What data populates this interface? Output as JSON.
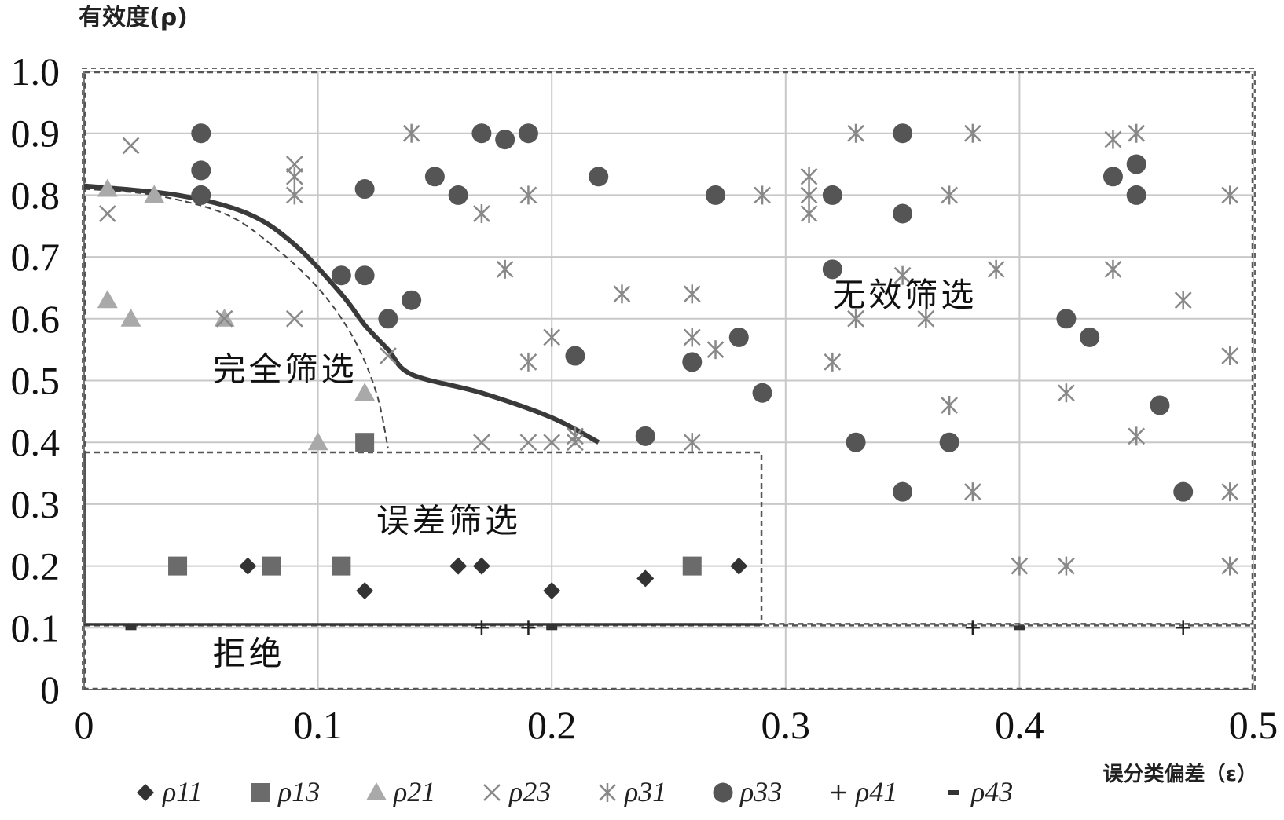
{
  "chart_data": {
    "type": "scatter",
    "ylabel": "有效度(ρ)",
    "xlabel": "误分类偏差（ε）",
    "xlim": [
      0,
      0.5
    ],
    "ylim": [
      0,
      1.0
    ],
    "x_ticks": [
      "0",
      "0.1",
      "0.2",
      "0.3",
      "0.4",
      "0.5"
    ],
    "y_ticks": [
      "0",
      "0.1",
      "0.2",
      "0.3",
      "0.4",
      "0.5",
      "0.6",
      "0.7",
      "0.8",
      "0.9",
      "1.0"
    ],
    "grid": true,
    "legend_position": "bottom",
    "regions": [
      {
        "label": "完全筛选",
        "x": 0.055,
        "y": 0.5
      },
      {
        "label": "无效筛选",
        "x": 0.32,
        "y": 0.62
      },
      {
        "label": "误差筛选",
        "x": 0.125,
        "y": 0.255
      },
      {
        "label": "拒绝",
        "x": 0.055,
        "y": 0.04
      }
    ],
    "region_boxes": [
      {
        "x": [
          0,
          0.5
        ],
        "y": [
          0.105,
          1.0
        ]
      },
      {
        "x": [
          0,
          0.29
        ],
        "y": [
          0.105,
          0.385
        ]
      },
      {
        "x": [
          0,
          0.5
        ],
        "y": [
          0,
          0.105
        ]
      }
    ],
    "boundary_curve_solid": [
      [
        0,
        0.815
      ],
      [
        0.04,
        0.8
      ],
      [
        0.07,
        0.77
      ],
      [
        0.09,
        0.72
      ],
      [
        0.11,
        0.64
      ],
      [
        0.12,
        0.59
      ],
      [
        0.13,
        0.55
      ],
      [
        0.14,
        0.51
      ],
      [
        0.17,
        0.48
      ],
      [
        0.2,
        0.44
      ],
      [
        0.22,
        0.4
      ]
    ],
    "boundary_curve_dashed": [
      [
        0,
        0.81
      ],
      [
        0.03,
        0.8
      ],
      [
        0.06,
        0.77
      ],
      [
        0.08,
        0.72
      ],
      [
        0.1,
        0.65
      ],
      [
        0.115,
        0.57
      ],
      [
        0.125,
        0.48
      ],
      [
        0.13,
        0.39
      ]
    ],
    "series": [
      {
        "name": "ρ11",
        "marker": "diamond",
        "points": [
          [
            0.07,
            0.2
          ],
          [
            0.12,
            0.16
          ],
          [
            0.16,
            0.2
          ],
          [
            0.17,
            0.2
          ],
          [
            0.2,
            0.16
          ],
          [
            0.24,
            0.18
          ],
          [
            0.28,
            0.2
          ]
        ]
      },
      {
        "name": "ρ13",
        "marker": "square",
        "points": [
          [
            0.04,
            0.2
          ],
          [
            0.08,
            0.2
          ],
          [
            0.11,
            0.2
          ],
          [
            0.12,
            0.4
          ],
          [
            0.26,
            0.2
          ]
        ]
      },
      {
        "name": "ρ21",
        "marker": "triangle",
        "points": [
          [
            0.01,
            0.81
          ],
          [
            0.03,
            0.8
          ],
          [
            0.01,
            0.63
          ],
          [
            0.02,
            0.6
          ],
          [
            0.06,
            0.6
          ],
          [
            0.1,
            0.4
          ],
          [
            0.12,
            0.48
          ]
        ]
      },
      {
        "name": "ρ23",
        "marker": "x",
        "points": [
          [
            0.02,
            0.88
          ],
          [
            0.01,
            0.77
          ],
          [
            0.06,
            0.6
          ],
          [
            0.09,
            0.6
          ],
          [
            0.09,
            0.85
          ],
          [
            0.17,
            0.4
          ],
          [
            0.19,
            0.4
          ],
          [
            0.2,
            0.4
          ],
          [
            0.21,
            0.4
          ],
          [
            0.13,
            0.54
          ]
        ]
      },
      {
        "name": "ρ31",
        "marker": "star",
        "points": [
          [
            0.09,
            0.83
          ],
          [
            0.09,
            0.8
          ],
          [
            0.14,
            0.9
          ],
          [
            0.17,
            0.77
          ],
          [
            0.18,
            0.68
          ],
          [
            0.19,
            0.8
          ],
          [
            0.19,
            0.53
          ],
          [
            0.2,
            0.57
          ],
          [
            0.21,
            0.41
          ],
          [
            0.23,
            0.64
          ],
          [
            0.26,
            0.64
          ],
          [
            0.26,
            0.57
          ],
          [
            0.26,
            0.4
          ],
          [
            0.27,
            0.55
          ],
          [
            0.29,
            0.8
          ],
          [
            0.31,
            0.83
          ],
          [
            0.31,
            0.8
          ],
          [
            0.31,
            0.77
          ],
          [
            0.32,
            0.53
          ],
          [
            0.33,
            0.9
          ],
          [
            0.33,
            0.6
          ],
          [
            0.35,
            0.67
          ],
          [
            0.36,
            0.6
          ],
          [
            0.37,
            0.8
          ],
          [
            0.37,
            0.46
          ],
          [
            0.38,
            0.9
          ],
          [
            0.38,
            0.32
          ],
          [
            0.39,
            0.68
          ],
          [
            0.4,
            0.2
          ],
          [
            0.42,
            0.48
          ],
          [
            0.42,
            0.2
          ],
          [
            0.44,
            0.89
          ],
          [
            0.44,
            0.68
          ],
          [
            0.45,
            0.9
          ],
          [
            0.45,
            0.41
          ],
          [
            0.47,
            0.63
          ],
          [
            0.49,
            0.8
          ],
          [
            0.49,
            0.54
          ],
          [
            0.49,
            0.32
          ],
          [
            0.49,
            0.2
          ]
        ]
      },
      {
        "name": "ρ33",
        "marker": "circle",
        "points": [
          [
            0.05,
            0.9
          ],
          [
            0.05,
            0.84
          ],
          [
            0.05,
            0.8
          ],
          [
            0.11,
            0.67
          ],
          [
            0.12,
            0.67
          ],
          [
            0.12,
            0.81
          ],
          [
            0.13,
            0.6
          ],
          [
            0.14,
            0.63
          ],
          [
            0.15,
            0.83
          ],
          [
            0.16,
            0.8
          ],
          [
            0.17,
            0.9
          ],
          [
            0.18,
            0.89
          ],
          [
            0.19,
            0.9
          ],
          [
            0.21,
            0.54
          ],
          [
            0.22,
            0.83
          ],
          [
            0.24,
            0.41
          ],
          [
            0.26,
            0.53
          ],
          [
            0.27,
            0.8
          ],
          [
            0.28,
            0.57
          ],
          [
            0.29,
            0.48
          ],
          [
            0.32,
            0.8
          ],
          [
            0.32,
            0.68
          ],
          [
            0.33,
            0.4
          ],
          [
            0.35,
            0.9
          ],
          [
            0.35,
            0.77
          ],
          [
            0.35,
            0.32
          ],
          [
            0.37,
            0.4
          ],
          [
            0.42,
            0.6
          ],
          [
            0.43,
            0.57
          ],
          [
            0.44,
            0.83
          ],
          [
            0.45,
            0.85
          ],
          [
            0.45,
            0.8
          ],
          [
            0.46,
            0.46
          ],
          [
            0.47,
            0.32
          ]
        ]
      },
      {
        "name": "ρ41",
        "marker": "plus",
        "points": [
          [
            0.17,
            0.1
          ],
          [
            0.19,
            0.1
          ],
          [
            0.38,
            0.1
          ],
          [
            0.47,
            0.1
          ]
        ]
      },
      {
        "name": "ρ43",
        "marker": "dash",
        "points": [
          [
            0.02,
            0.1
          ],
          [
            0.2,
            0.1
          ],
          [
            0.4,
            0.1
          ]
        ]
      }
    ]
  }
}
